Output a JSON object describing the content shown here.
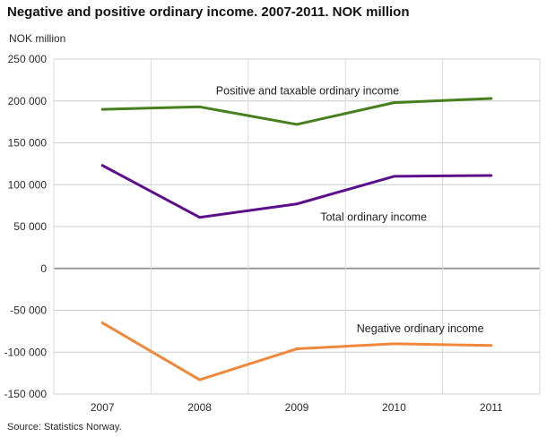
{
  "chart_data": {
    "type": "line",
    "title": "Negative and positive ordinary income. 2007-2011. NOK million",
    "ylabel": "NOK million",
    "source": "Source: Statistics Norway.",
    "categories": [
      "2007",
      "2008",
      "2009",
      "2010",
      "2011"
    ],
    "ylim": [
      -150000,
      250000
    ],
    "ytick_step": 50000,
    "grid": true,
    "legend": "inline-labels",
    "series": [
      {
        "name": "Positive and taxable ordinary income",
        "color": "#457f1e",
        "values": [
          190000,
          193000,
          172000,
          198000,
          203000
        ],
        "label_pos": {
          "x": 2.11,
          "y": 208000
        }
      },
      {
        "name": "Total ordinary income",
        "color": "#5b0f8a",
        "values": [
          123000,
          61000,
          77000,
          110000,
          111000
        ],
        "label_pos": {
          "x": 2.79,
          "y": 57000
        }
      },
      {
        "name": "Negative ordinary income",
        "color": "#f0883c",
        "values": [
          -65000,
          -133000,
          -96000,
          -90000,
          -92000
        ],
        "label_pos": {
          "x": 3.27,
          "y": -76000
        }
      }
    ]
  }
}
